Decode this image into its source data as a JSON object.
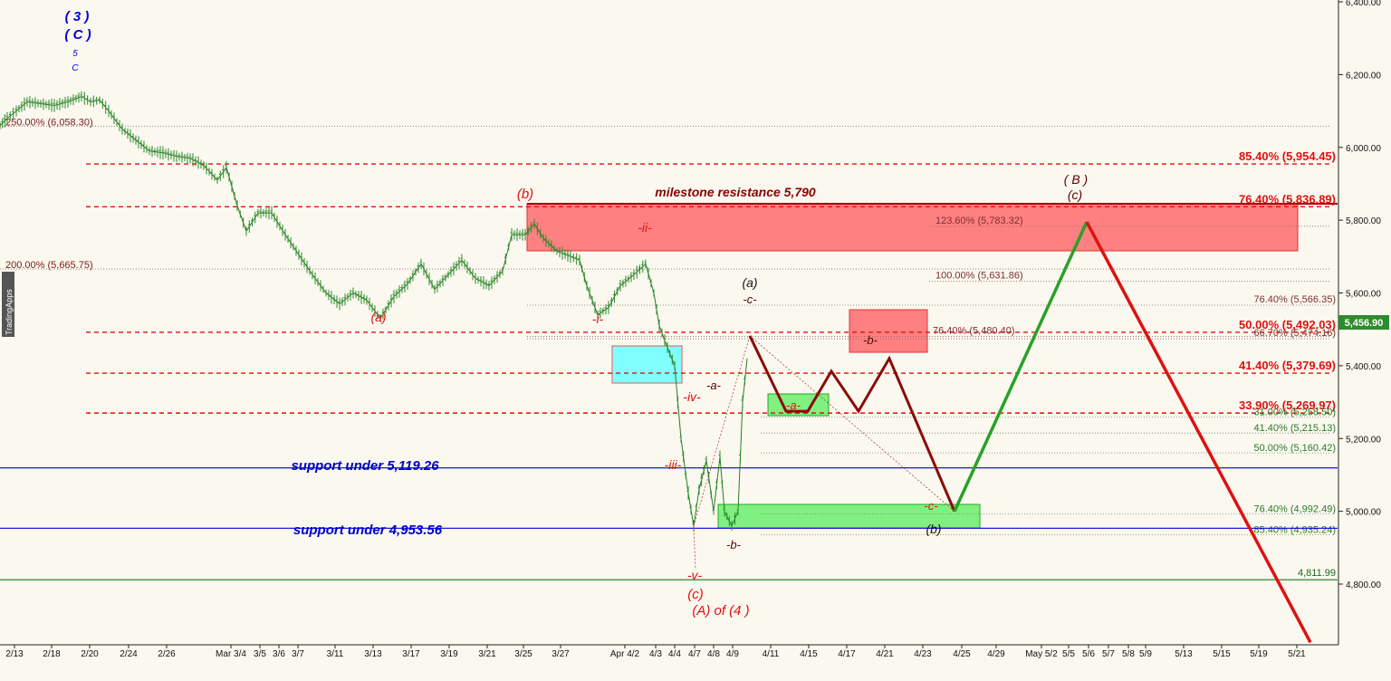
{
  "chart_data": {
    "type": "candlestick",
    "price_badge": "5,456.90",
    "watermark": "TradingApps",
    "y_ticks": [
      "6,400.00",
      "6,200.00",
      "6,000.00",
      "5,800.00",
      "5,600.00",
      "5,400.00",
      "5,200.00",
      "5,000.00",
      "4,800.00"
    ],
    "y_tick_values": [
      6400,
      6200,
      6000,
      5800,
      5600,
      5400,
      5200,
      5000,
      4800
    ],
    "x_ticks": [
      "2/13",
      "2/18",
      "2/20",
      "2/24",
      "2/26",
      "Mar 3/4",
      "3/5",
      "3/6",
      "3/7",
      "3/11",
      "3/13",
      "3/17",
      "3/19",
      "3/21",
      "3/25",
      "3/27",
      "Apr 4/2",
      "4/3",
      "4/4",
      "4/7",
      "4/8",
      "4/9",
      "4/11",
      "4/15",
      "4/17",
      "4/21",
      "4/23",
      "4/25",
      "4/29",
      "May 5/2",
      "5/5",
      "5/6",
      "5/7",
      "5/8",
      "5/9",
      "5/13",
      "5/15",
      "5/19",
      "5/21"
    ],
    "price_path": [
      [
        0,
        6060
      ],
      [
        8,
        6080
      ],
      [
        18,
        6100
      ],
      [
        30,
        6125
      ],
      [
        45,
        6120
      ],
      [
        60,
        6115
      ],
      [
        75,
        6125
      ],
      [
        90,
        6140
      ],
      [
        100,
        6125
      ],
      [
        110,
        6130
      ],
      [
        120,
        6100
      ],
      [
        135,
        6050
      ],
      [
        150,
        6020
      ],
      [
        165,
        5990
      ],
      [
        180,
        5985
      ],
      [
        195,
        5975
      ],
      [
        210,
        5970
      ],
      [
        225,
        5950
      ],
      [
        240,
        5910
      ],
      [
        250,
        5945
      ],
      [
        262,
        5840
      ],
      [
        272,
        5770
      ],
      [
        285,
        5820
      ],
      [
        300,
        5820
      ],
      [
        315,
        5760
      ],
      [
        330,
        5705
      ],
      [
        345,
        5650
      ],
      [
        360,
        5600
      ],
      [
        375,
        5570
      ],
      [
        390,
        5600
      ],
      [
        405,
        5580
      ],
      [
        420,
        5530
      ],
      [
        435,
        5590
      ],
      [
        450,
        5625
      ],
      [
        465,
        5680
      ],
      [
        480,
        5610
      ],
      [
        495,
        5650
      ],
      [
        510,
        5690
      ],
      [
        525,
        5640
      ],
      [
        540,
        5620
      ],
      [
        555,
        5660
      ],
      [
        565,
        5760
      ],
      [
        580,
        5760
      ],
      [
        590,
        5790
      ],
      [
        600,
        5750
      ],
      [
        615,
        5715
      ],
      [
        630,
        5700
      ],
      [
        640,
        5690
      ],
      [
        648,
        5620
      ],
      [
        660,
        5540
      ],
      [
        672,
        5560
      ],
      [
        685,
        5620
      ],
      [
        700,
        5650
      ],
      [
        713,
        5680
      ],
      [
        722,
        5600
      ],
      [
        728,
        5510
      ],
      [
        737,
        5450
      ],
      [
        745,
        5400
      ],
      [
        752,
        5200
      ],
      [
        760,
        5050
      ],
      [
        766,
        4960
      ],
      [
        772,
        5060
      ],
      [
        780,
        5140
      ],
      [
        788,
        5000
      ],
      [
        795,
        5150
      ],
      [
        800,
        5000
      ],
      [
        808,
        4960
      ],
      [
        815,
        5000
      ],
      [
        820,
        5300
      ],
      [
        825,
        5420
      ]
    ],
    "levels_red_right": [
      {
        "label": "85.40% (5,954.45)",
        "value": 5954.45
      },
      {
        "label": "76.40% (5,836.89)",
        "value": 5836.89
      },
      {
        "label": "50.00% (5,492.03)",
        "value": 5492.03
      },
      {
        "label": "41.40% (5,379.69)",
        "value": 5379.69
      },
      {
        "label": "33.90% (5,269.97)",
        "value": 5269.97
      }
    ],
    "levels_gray_right": [
      {
        "label": "123.60% (5,783.32)",
        "value": 5783.32
      },
      {
        "label": "100.00% (5,631.86)",
        "value": 5631.86
      },
      {
        "label": "76.40% (5,566.35)",
        "value": 5566.35
      },
      {
        "label": "76.40% (5,480.40)",
        "value": 5480.4
      },
      {
        "label": "66.70% (5,474.16)",
        "value": 5474.16
      }
    ],
    "levels_green_right": [
      {
        "label": "31.00% (5,258.50)",
        "value": 5258.5
      },
      {
        "label": "41.40% (5,215.13)",
        "value": 5215.13
      },
      {
        "label": "50.00% (5,160.42)",
        "value": 5160.42
      },
      {
        "label": "76.40% (4,992.49)",
        "value": 4992.49
      },
      {
        "label": "85.40% (4,935.24)",
        "value": 4935.24
      }
    ],
    "levels_gray_left": [
      {
        "label": "250.00% (6,058.30)",
        "value": 6058.3
      },
      {
        "label": "200.00% (5,665.75)",
        "value": 5665.75
      }
    ],
    "support_lines": [
      {
        "label": "support under 5,119.26",
        "value": 5119.26
      },
      {
        "label": "support under 4,953.56",
        "value": 4953.56
      }
    ],
    "green_line": {
      "label": "4,811.99",
      "value": 4811.99
    },
    "milestone_label": "milestone resistance 5,790",
    "wave_labels": {
      "top": [
        "( 3 )",
        "( C )",
        "5",
        "C"
      ],
      "a_low": "(a)",
      "b_high": "(b)",
      "ii": "-ii-",
      "i": "-i-",
      "iii": "-iii-",
      "iv": "-iv-",
      "v": "-v-",
      "c_low": "(c)",
      "a_of_4": "(A) of (4 )",
      "small_a": "-a-",
      "small_b": "-b-",
      "big_a": "(a)",
      "small_c": "-c-",
      "proj_a": "-a-",
      "proj_b": "-b-",
      "proj_c": "-c-",
      "big_b": "(b)",
      "big_B": "( B )",
      "big_c": "(c)"
    },
    "projection_dark": [
      [
        828,
        5482
      ],
      [
        868,
        5275
      ],
      [
        892,
        5275
      ],
      [
        918,
        5385
      ],
      [
        948,
        5275
      ],
      [
        982,
        5420
      ],
      [
        1054,
        5000
      ]
    ],
    "projection_green": [
      [
        1054,
        5000
      ],
      [
        1200,
        5795
      ]
    ],
    "projection_red": [
      [
        1200,
        5795
      ],
      [
        1447,
        4640
      ]
    ]
  }
}
